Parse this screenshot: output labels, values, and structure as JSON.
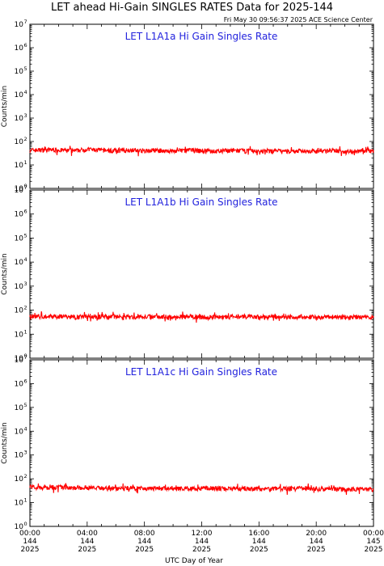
{
  "header": {
    "title": "LET ahead Hi-Gain SINGLES RATES Data for 2025-144",
    "timestamp": "Fri May 30 09:56:37 2025 ACE Science Center"
  },
  "chart_data": {
    "type": "line",
    "xlabel": "UTC Day of Year",
    "ylabel": "Counts/min",
    "yscale": "log",
    "ylim": [
      1,
      10000000
    ],
    "y_ticks": [
      {
        "base": "10",
        "exp": "0"
      },
      {
        "base": "10",
        "exp": "1"
      },
      {
        "base": "10",
        "exp": "2"
      },
      {
        "base": "10",
        "exp": "3"
      },
      {
        "base": "10",
        "exp": "4"
      },
      {
        "base": "10",
        "exp": "5"
      },
      {
        "base": "10",
        "exp": "6"
      },
      {
        "base": "10",
        "exp": "7"
      }
    ],
    "x_ticks": [
      {
        "time": "00:00",
        "doy": "144",
        "year": "2025"
      },
      {
        "time": "04:00",
        "doy": "144",
        "year": "2025"
      },
      {
        "time": "08:00",
        "doy": "144",
        "year": "2025"
      },
      {
        "time": "12:00",
        "doy": "144",
        "year": "2025"
      },
      {
        "time": "16:00",
        "doy": "144",
        "year": "2025"
      },
      {
        "time": "20:00",
        "doy": "144",
        "year": "2025"
      },
      {
        "time": "00:00",
        "doy": "145",
        "year": "2025"
      }
    ],
    "x_hours": [
      0,
      24
    ],
    "line_color": "#ff0000",
    "panel_label_color": "#2222dd",
    "panels": [
      {
        "label": "LET L1A1a Hi Gain Singles Rate",
        "series": {
          "x": [
            0,
            1,
            2,
            3,
            4,
            5,
            6,
            7,
            8,
            9,
            10,
            11,
            12,
            13,
            14,
            15,
            16,
            17,
            18,
            19,
            20,
            21,
            22,
            23,
            24
          ],
          "values": [
            42,
            45,
            44,
            40,
            46,
            43,
            41,
            44,
            40,
            42,
            39,
            43,
            41,
            38,
            42,
            40,
            39,
            41,
            38,
            40,
            39,
            41,
            38,
            40,
            40
          ]
        }
      },
      {
        "label": "LET L1A1b Hi Gain Singles Rate",
        "series": {
          "x": [
            0,
            1,
            2,
            3,
            4,
            5,
            6,
            7,
            8,
            9,
            10,
            11,
            12,
            13,
            14,
            15,
            16,
            17,
            18,
            19,
            20,
            21,
            22,
            23,
            24
          ],
          "values": [
            55,
            54,
            56,
            52,
            55,
            53,
            54,
            51,
            53,
            55,
            52,
            54,
            51,
            53,
            52,
            55,
            51,
            53,
            52,
            54,
            51,
            53,
            52,
            51,
            52
          ]
        }
      },
      {
        "label": "LET L1A1c Hi Gain Singles Rate",
        "series": {
          "x": [
            0,
            1,
            2,
            3,
            4,
            5,
            6,
            7,
            8,
            9,
            10,
            11,
            12,
            13,
            14,
            15,
            16,
            17,
            18,
            19,
            20,
            21,
            22,
            23,
            24
          ],
          "values": [
            45,
            43,
            46,
            42,
            44,
            41,
            40,
            42,
            39,
            41,
            38,
            40,
            39,
            41,
            38,
            40,
            37,
            39,
            38,
            40,
            37,
            39,
            36,
            38,
            37
          ]
        }
      }
    ]
  }
}
